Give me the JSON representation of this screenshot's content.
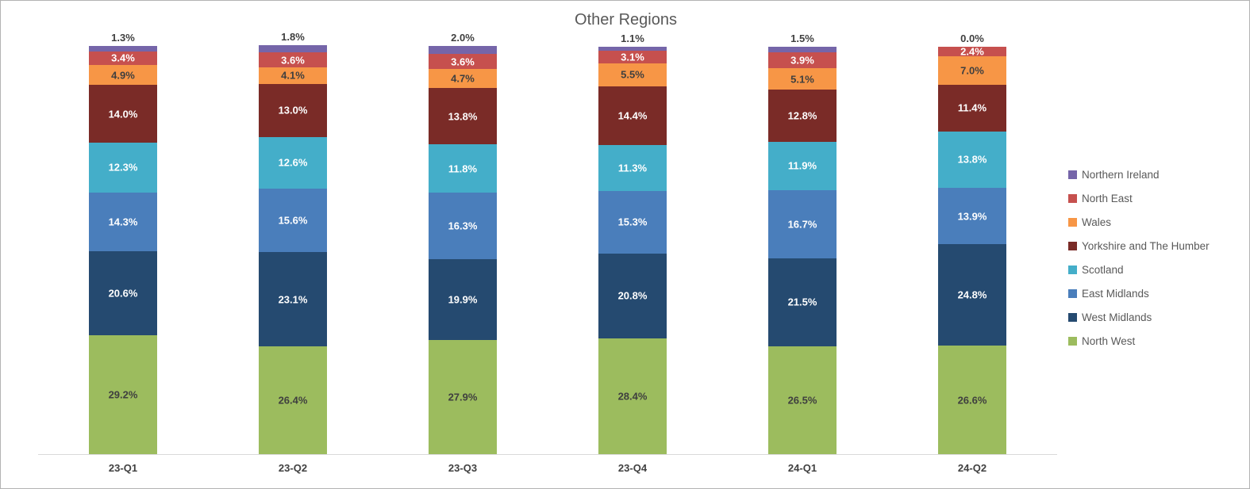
{
  "chart_data": {
    "type": "bar",
    "stacked": true,
    "title": "Other Regions",
    "unit": "%",
    "xlabel": "",
    "ylabel": "",
    "ylim": [
      0,
      100
    ],
    "grid": false,
    "legend_position": "right",
    "data_labels": "percent with one decimal, shown on each segment; top series labeled above bar",
    "categories": [
      "23-Q1",
      "23-Q2",
      "23-Q3",
      "23-Q4",
      "24-Q1",
      "24-Q2"
    ],
    "series": [
      {
        "name": "North West",
        "color": "#9CBC5E",
        "label_style": "dark",
        "values": [
          29.2,
          26.4,
          27.9,
          28.4,
          26.5,
          26.6
        ]
      },
      {
        "name": "West Midlands",
        "color": "#254A70",
        "label_style": "light",
        "values": [
          20.6,
          23.1,
          19.9,
          20.8,
          21.5,
          24.8
        ]
      },
      {
        "name": "East Midlands",
        "color": "#4A7EBB",
        "label_style": "light",
        "values": [
          14.3,
          15.6,
          16.3,
          15.3,
          16.7,
          13.9
        ]
      },
      {
        "name": "Scotland",
        "color": "#44AEC9",
        "label_style": "light",
        "values": [
          12.3,
          12.6,
          11.8,
          11.3,
          11.9,
          13.8
        ]
      },
      {
        "name": "Yorkshire and The Humber",
        "color": "#7A2B27",
        "label_style": "light",
        "values": [
          14.0,
          13.0,
          13.8,
          14.4,
          12.8,
          11.4
        ]
      },
      {
        "name": "Wales",
        "color": "#F79646",
        "label_style": "dark",
        "values": [
          4.9,
          4.1,
          4.7,
          5.5,
          5.1,
          7.0
        ]
      },
      {
        "name": "North East",
        "color": "#C6504E",
        "label_style": "light",
        "values": [
          3.4,
          3.6,
          3.6,
          3.1,
          3.9,
          2.4
        ]
      },
      {
        "name": "Northern Ireland",
        "color": "#7565A9",
        "label_style": "outside",
        "values": [
          1.3,
          1.8,
          2.0,
          1.1,
          1.5,
          0.0
        ]
      }
    ],
    "legend_entries_top_to_bottom": [
      "Northern Ireland",
      "North East",
      "Wales",
      "Yorkshire and The Humber",
      "Scotland",
      "East Midlands",
      "West Midlands",
      "North West"
    ]
  },
  "colors": {
    "title_text": "#595959",
    "axis_line": "#D9D9D9",
    "label_dark": "#3F3F3F",
    "label_light": "#FFFFFF",
    "axis_tick_text": "#404040",
    "background": "#FFFFFF"
  }
}
